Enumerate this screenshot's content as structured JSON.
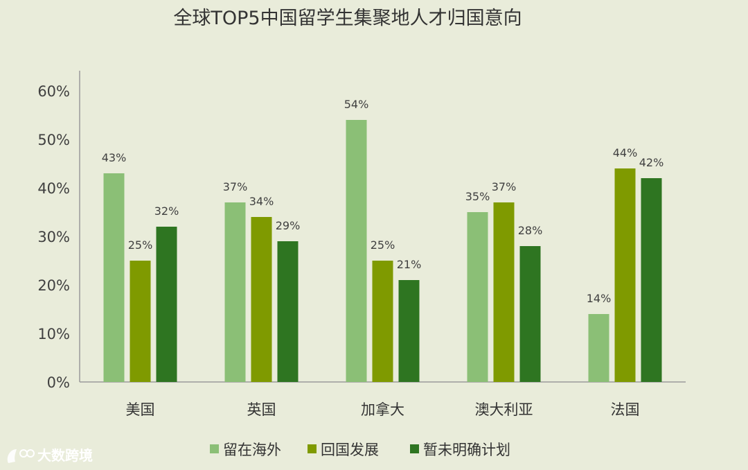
{
  "chart_data": {
    "type": "bar",
    "title": "全球TOP5中国留学生集聚地人才归国意向",
    "categories": [
      "美国",
      "英国",
      "加拿大",
      "澳大利亚",
      "法国"
    ],
    "series": [
      {
        "name": "留在海外",
        "values": [
          43,
          37,
          54,
          35,
          14
        ],
        "labels": [
          "43%",
          "37%",
          "54%",
          "35%",
          "14%"
        ],
        "color": "#8bbf76"
      },
      {
        "name": "回国发展",
        "values": [
          25,
          34,
          25,
          37,
          44
        ],
        "labels": [
          "25%",
          "34%",
          "25%",
          "37%",
          "44%"
        ],
        "color": "#7f9a00"
      },
      {
        "name": "暂未明确计划",
        "values": [
          32,
          29,
          21,
          28,
          42
        ],
        "labels": [
          "32%",
          "29%",
          "21%",
          "28%",
          "42%"
        ],
        "color": "#2e7521"
      }
    ],
    "ylim": [
      0,
      60
    ],
    "yticks": [
      0,
      10,
      20,
      30,
      40,
      50,
      60
    ],
    "ytick_labels": [
      "0%",
      "10%",
      "20%",
      "30%",
      "40%",
      "50%",
      "60%"
    ],
    "xlabel": "",
    "ylabel": "",
    "grid": false,
    "legend_position": "bottom"
  },
  "watermark": {
    "text": "大数跨境"
  },
  "colors": {
    "background": "#e9ecda",
    "axis": "#9a9a9a"
  }
}
